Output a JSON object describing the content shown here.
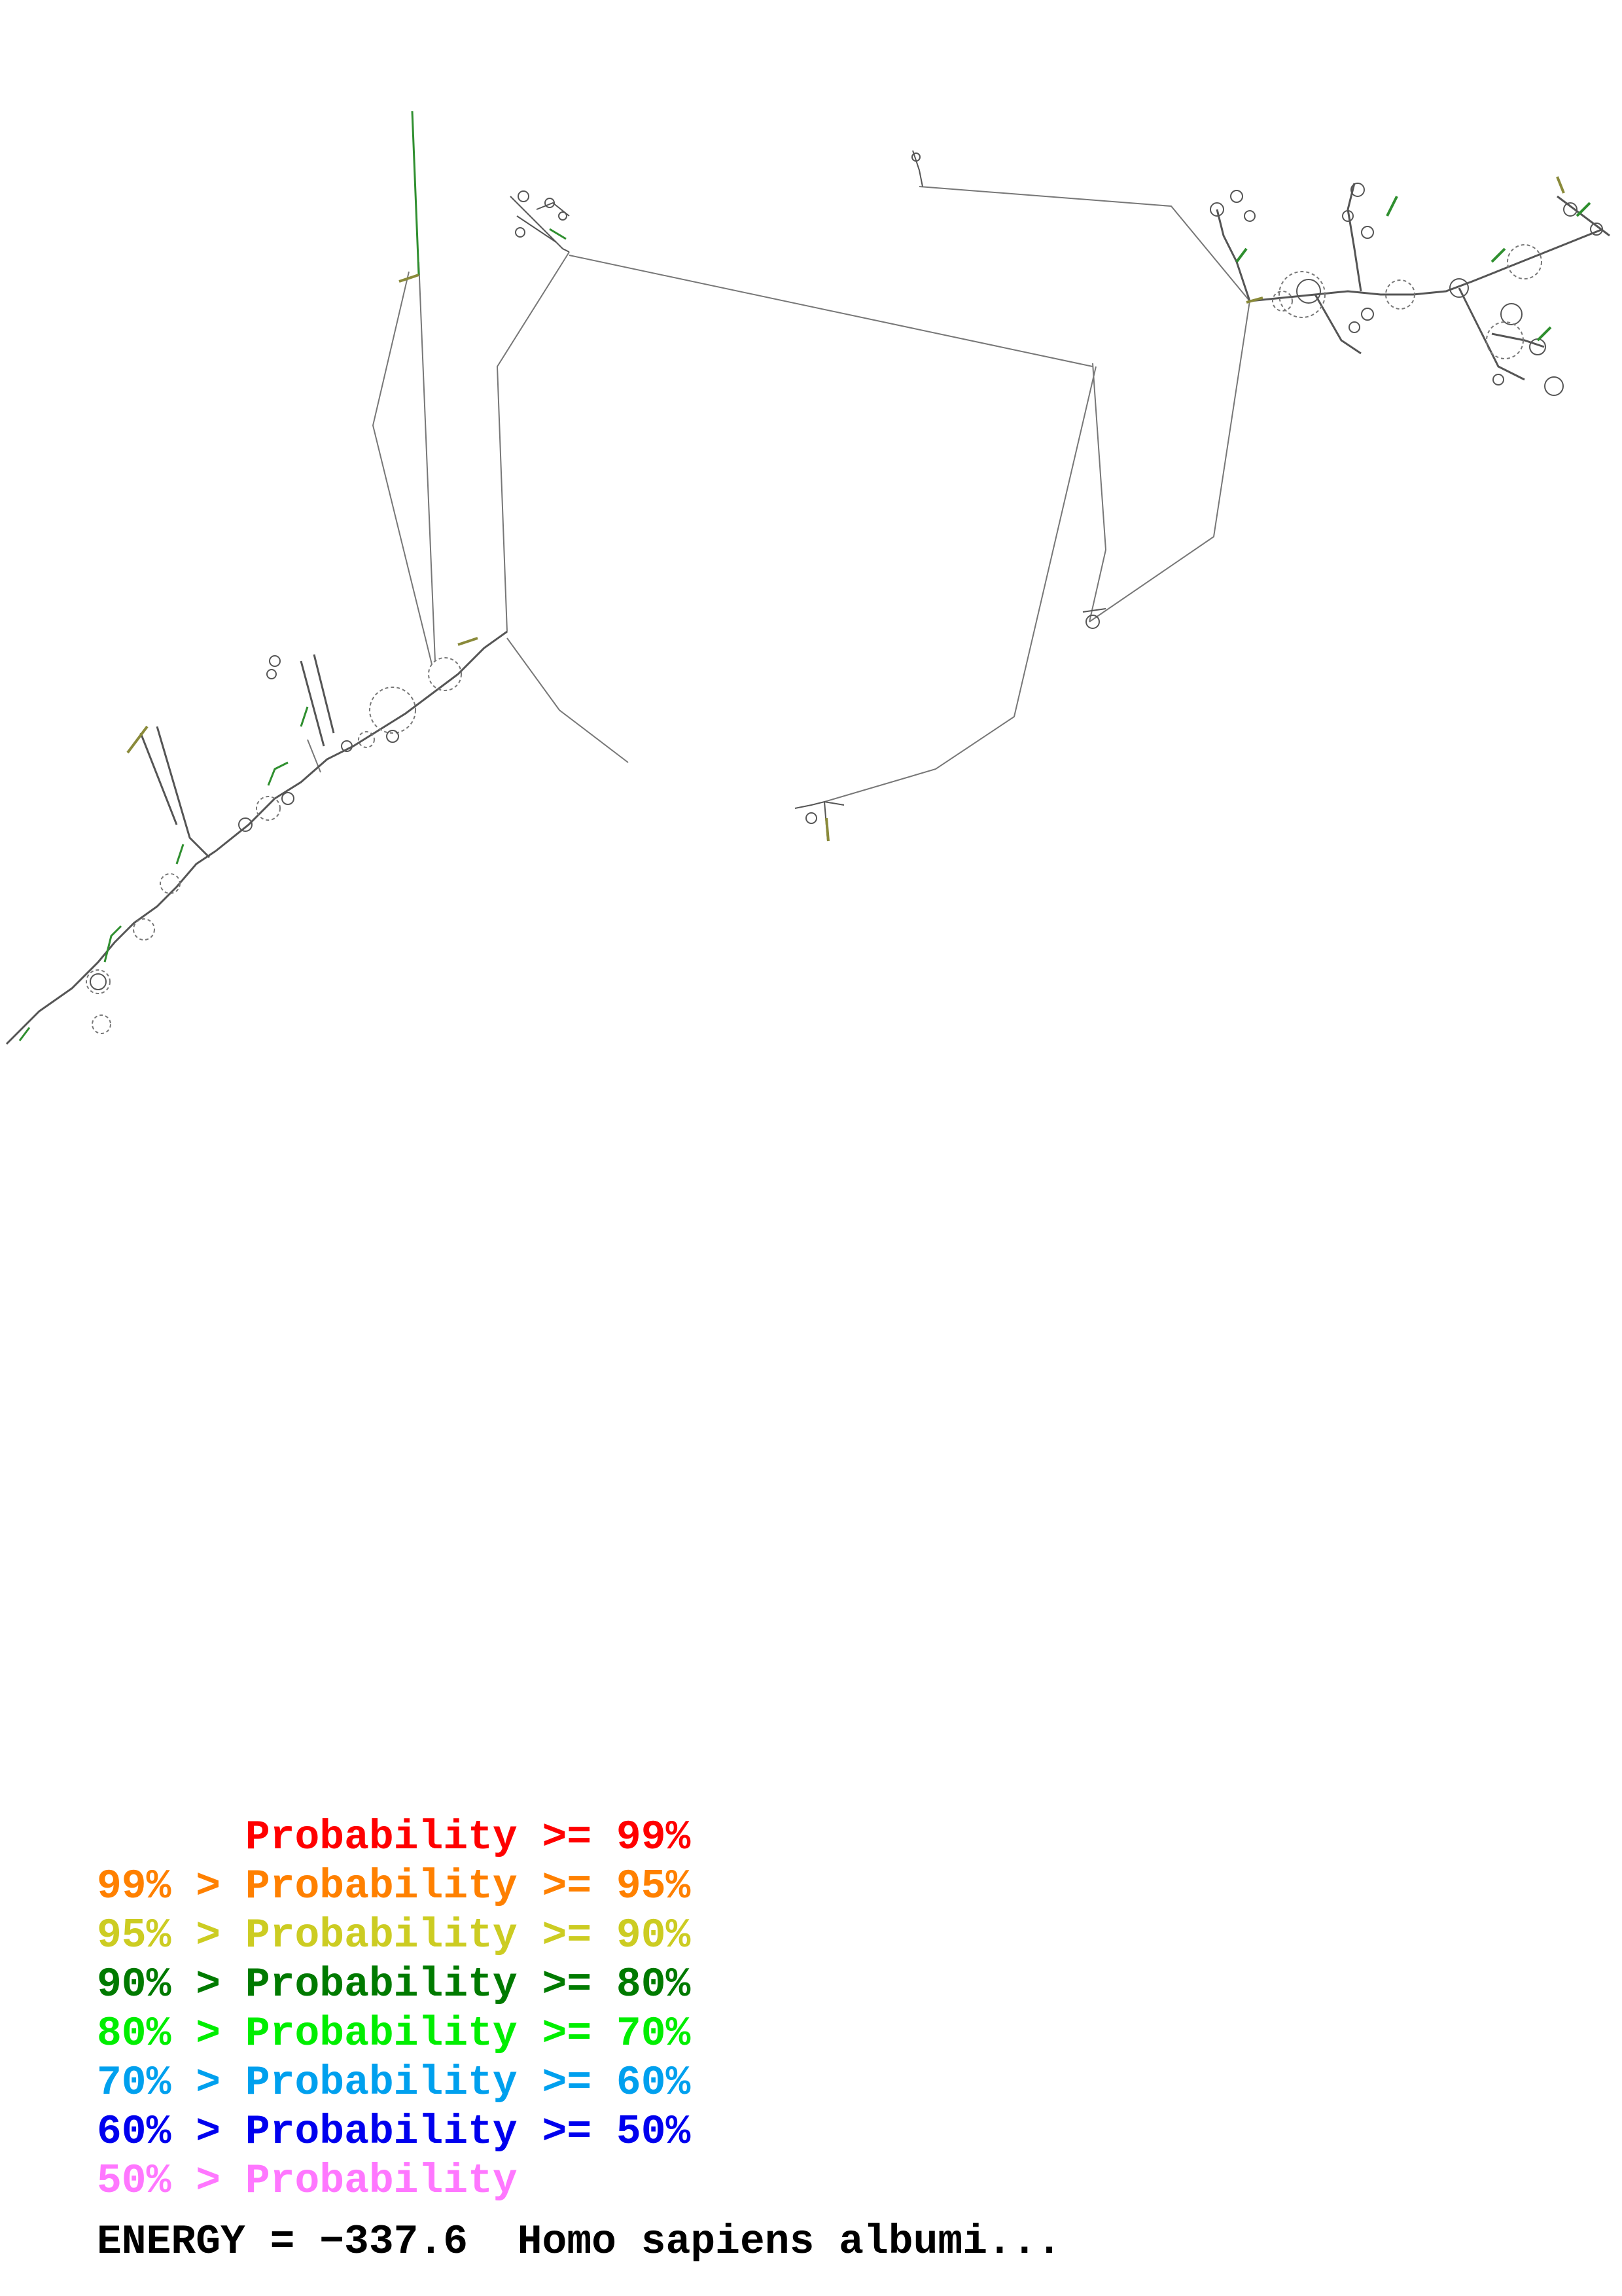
{
  "legend": {
    "rows": [
      {
        "prefix": "    ",
        "label": "Probability >= 99%",
        "color": "#ff0000"
      },
      {
        "prefix": "99% > ",
        "label": "Probability >= 95%",
        "color": "#ff8000"
      },
      {
        "prefix": "95% > ",
        "label": "Probability >= 90%",
        "color": "#cccc22"
      },
      {
        "prefix": "90% > ",
        "label": "Probability >= 80%",
        "color": "#007a00"
      },
      {
        "prefix": "80% > ",
        "label": "Probability >= 70%",
        "color": "#00ee00"
      },
      {
        "prefix": "70% > ",
        "label": "Probability >= 60%",
        "color": "#00a0ee"
      },
      {
        "prefix": "60% > ",
        "label": "Probability >= 50%",
        "color": "#0000ee"
      },
      {
        "prefix": "50% > ",
        "label": "Probability",
        "color": "#ff77ff"
      }
    ]
  },
  "energy": {
    "text": "ENERGY = −337.6  Homo sapiens albumi..."
  },
  "colors": {
    "backbone": "#777777",
    "helix_dark": "#555555",
    "helix_green": "#2f8f2f",
    "helix_olive": "#8a8a3a"
  }
}
